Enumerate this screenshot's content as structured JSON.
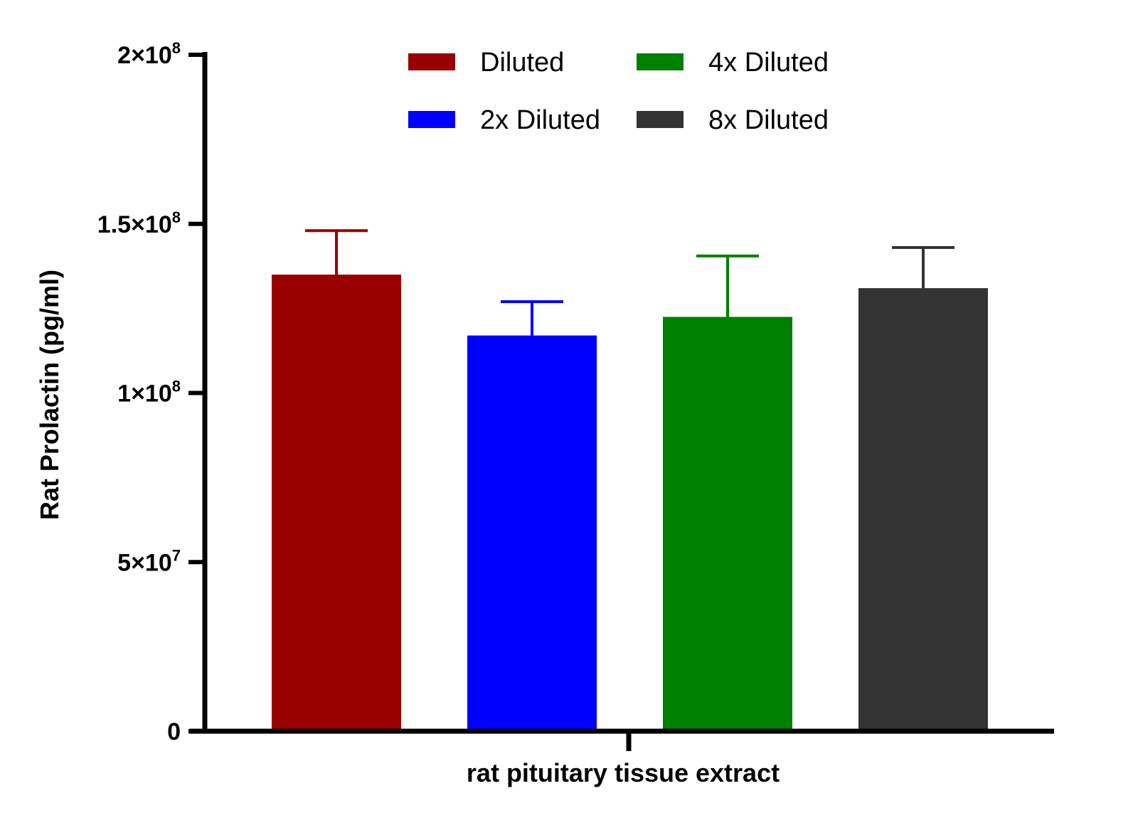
{
  "chart_data": {
    "type": "bar",
    "ylabel": "Rat Prolactin (pg/ml)",
    "xlabel": "rat pituitary tissue extract",
    "ylim": [
      0,
      200000000
    ],
    "yticks": [
      {
        "value": 0,
        "mantissa": "0",
        "exponent": ""
      },
      {
        "value": 50000000,
        "mantissa": "5×10",
        "exponent": "7"
      },
      {
        "value": 100000000,
        "mantissa": "1×10",
        "exponent": "8"
      },
      {
        "value": 150000000,
        "mantissa": "1.5×10",
        "exponent": "8"
      },
      {
        "value": 200000000,
        "mantissa": "2×10",
        "exponent": "8"
      }
    ],
    "legend_position": "top",
    "series": [
      {
        "name": "Diluted",
        "value": 135000000,
        "error": 13000000,
        "color": "#990000"
      },
      {
        "name": "2x Diluted",
        "value": 117000000,
        "error": 10000000,
        "color": "#0000ff"
      },
      {
        "name": "4x Diluted",
        "value": 122500000,
        "error": 18000000,
        "color": "#008000"
      },
      {
        "name": "8x Diluted",
        "value": 131000000,
        "error": 12000000,
        "color": "#333333"
      }
    ]
  }
}
